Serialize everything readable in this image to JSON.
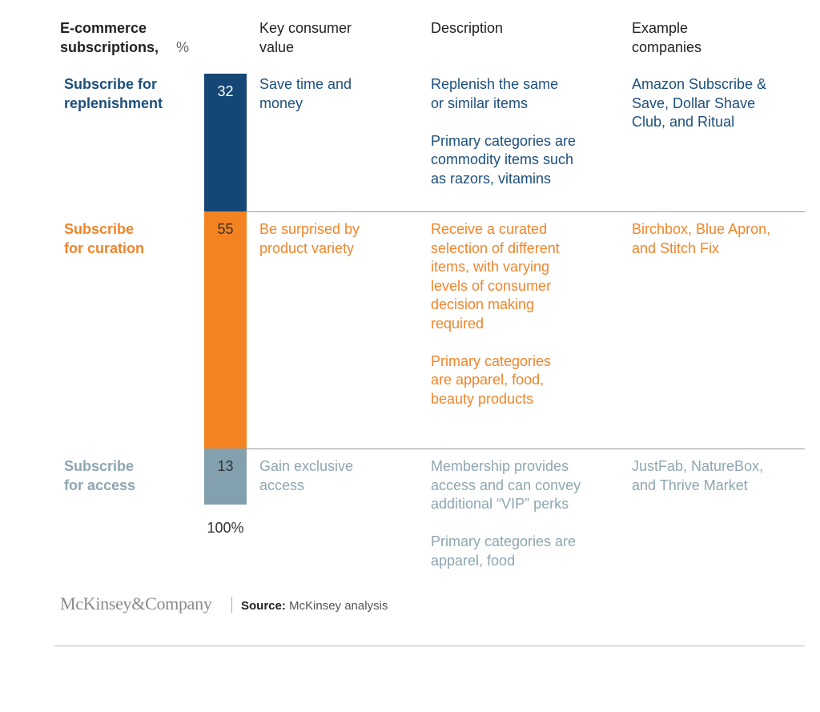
{
  "headers": {
    "col1_bold": "E-commerce subscriptions,",
    "col1_unit": "%",
    "col2": "Key consumer\nvalue",
    "col3": "Description",
    "col4": "Example\ncompanies"
  },
  "chart_data": {
    "type": "bar",
    "stacked": true,
    "categories": [
      "Subscribe for replenishment",
      "Subscribe for curation",
      "Subscribe for access"
    ],
    "values": [
      32,
      55,
      13
    ],
    "total_label": "100%",
    "colors": [
      "#144775",
      "#f38321",
      "#83a0ae"
    ]
  },
  "rows": [
    {
      "label": "Subscribe for\nreplenishment",
      "value_label": "32",
      "key_value": "Save time and\nmoney",
      "description": [
        "Replenish the same\nor similar items",
        "Primary categories are\ncommodity items such\nas razors, vitamins"
      ],
      "companies": "Amazon Subscribe &\nSave, Dollar Shave\nClub, and Ritual",
      "text_color": "#1d4f7e"
    },
    {
      "label": "Subscribe\nfor curation",
      "value_label": "55",
      "key_value": "Be surprised by\nproduct variety",
      "description": [
        "Receive a curated\nselection of different\nitems, with varying\nlevels of consumer\ndecision making\nrequired",
        "Primary categories\nare apparel, food,\nbeauty products"
      ],
      "companies": "Birchbox, Blue Apron,\nand Stitch Fix",
      "text_color": "#f0852a"
    },
    {
      "label": "Subscribe\nfor access",
      "value_label": "13",
      "key_value": "Gain exclusive\naccess",
      "description": [
        "Membership provides\naccess and can convey\nadditional “VIP” perks",
        "Primary categories are\napparel, food"
      ],
      "companies": "JustFab, NatureBox,\nand Thrive Market",
      "text_color": "#8ea6b2"
    }
  ],
  "footer": {
    "logo": "McKinsey&Company",
    "source_label": "Source:",
    "source_text": "McKinsey analysis"
  }
}
